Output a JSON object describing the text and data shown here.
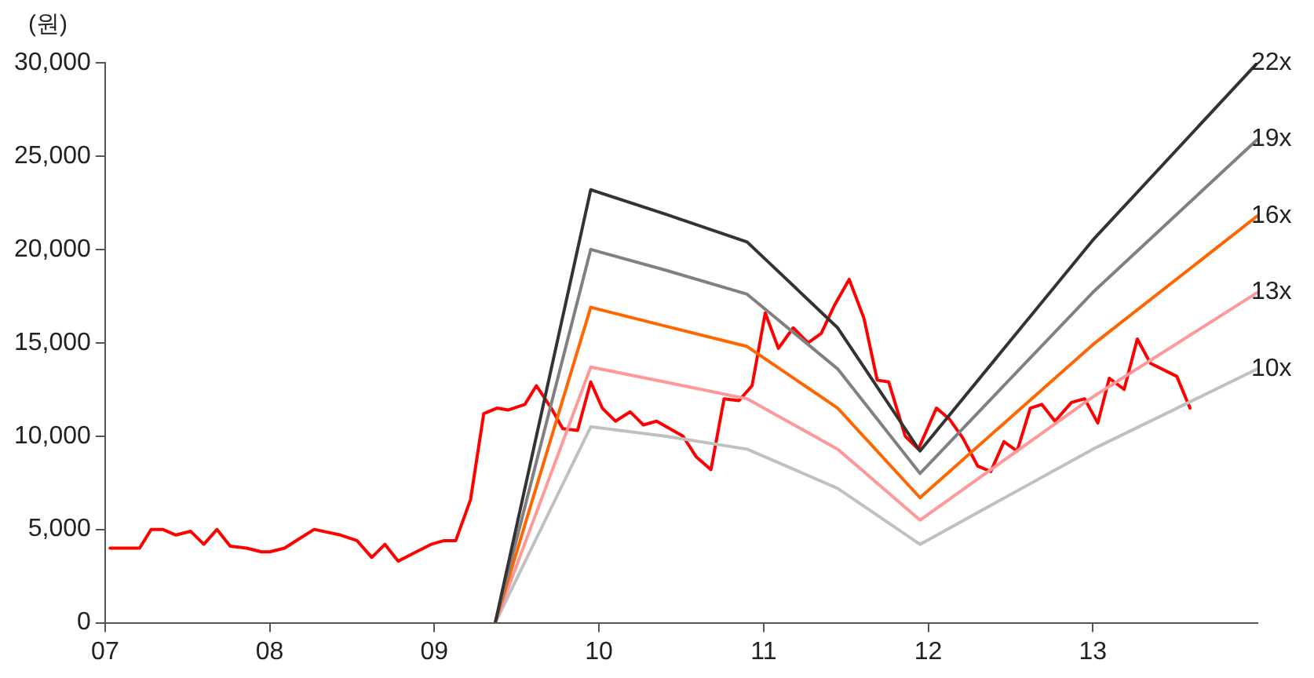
{
  "chart_data": {
    "type": "line",
    "ylabel": "(원)",
    "xlim": [
      2007,
      2014
    ],
    "xticks": [
      {
        "value": 2007,
        "label": "07"
      },
      {
        "value": 2008,
        "label": "08"
      },
      {
        "value": 2009,
        "label": "09"
      },
      {
        "value": 2010,
        "label": "10"
      },
      {
        "value": 2011,
        "label": "11"
      },
      {
        "value": 2012,
        "label": "12"
      },
      {
        "value": 2013,
        "label": "13"
      }
    ],
    "ylim": [
      0,
      30000
    ],
    "yticks": [
      {
        "value": 0,
        "label": "0"
      },
      {
        "value": 5000,
        "label": "5,000"
      },
      {
        "value": 10000,
        "label": "10,000"
      },
      {
        "value": 15000,
        "label": "15,000"
      },
      {
        "value": 20000,
        "label": "20,000"
      },
      {
        "value": 25000,
        "label": "25,000"
      },
      {
        "value": 30000,
        "label": "30,000"
      }
    ],
    "grid": false,
    "legend": false,
    "marker": "none",
    "line_style": "solid",
    "series": [
      {
        "name": "22x",
        "color": "#333333",
        "x": [
          2009.37,
          2009.95,
          2010.4,
          2010.9,
          2011.45,
          2011.95,
          2013.0,
          2014.0
        ],
        "values": [
          0,
          23200,
          21900,
          20400,
          15800,
          9200,
          20500,
          30000
        ]
      },
      {
        "name": "19x",
        "color": "#808080",
        "x": [
          2009.37,
          2009.95,
          2010.4,
          2010.9,
          2011.45,
          2011.95,
          2013.0,
          2014.0
        ],
        "values": [
          0,
          20000,
          18900,
          17600,
          13600,
          8000,
          17700,
          25900
        ]
      },
      {
        "name": "16x",
        "color": "#ff6600",
        "x": [
          2009.37,
          2009.95,
          2010.4,
          2010.9,
          2011.45,
          2011.95,
          2013.0,
          2014.0
        ],
        "values": [
          0,
          16900,
          15900,
          14800,
          11500,
          6700,
          14900,
          21800
        ]
      },
      {
        "name": "13x",
        "color": "#ff9999",
        "x": [
          2009.37,
          2009.95,
          2010.4,
          2010.9,
          2011.45,
          2011.95,
          2013.0,
          2014.0
        ],
        "values": [
          0,
          13700,
          12900,
          12000,
          9300,
          5500,
          12100,
          17700
        ]
      },
      {
        "name": "10x",
        "color": "#c0c0c0",
        "x": [
          2009.37,
          2009.95,
          2010.4,
          2010.9,
          2011.45,
          2011.95,
          2013.0,
          2014.0
        ],
        "values": [
          0,
          10500,
          10000,
          9300,
          7200,
          4200,
          9300,
          13600
        ]
      },
      {
        "color": "#ff0000",
        "x": [
          2007.03,
          2007.21,
          2007.28,
          2007.35,
          2007.43,
          2007.52,
          2007.6,
          2007.68,
          2007.76,
          2007.86,
          2007.95,
          2008.0,
          2008.09,
          2008.18,
          2008.27,
          2008.43,
          2008.53,
          2008.62,
          2008.7,
          2008.78,
          2008.89,
          2008.98,
          2009.06,
          2009.13,
          2009.22,
          2009.3,
          2009.38,
          2009.45,
          2009.55,
          2009.62,
          2009.71,
          2009.78,
          2009.87,
          2009.95,
          2010.02,
          2010.1,
          2010.19,
          2010.27,
          2010.35,
          2010.43,
          2010.51,
          2010.59,
          2010.68,
          2010.76,
          2010.85,
          2010.93,
          2011.01,
          2011.09,
          2011.18,
          2011.27,
          2011.35,
          2011.43,
          2011.52,
          2011.61,
          2011.69,
          2011.76,
          2011.86,
          2011.94,
          2012.05,
          2012.13,
          2012.21,
          2012.3,
          2012.38,
          2012.46,
          2012.54,
          2012.62,
          2012.69,
          2012.77,
          2012.87,
          2012.95,
          2013.03,
          2013.1,
          2013.19,
          2013.27,
          2013.35,
          2013.51,
          2013.59
        ],
        "values": [
          4000,
          4000,
          5000,
          5000,
          4700,
          4900,
          4200,
          5000,
          4100,
          4000,
          3800,
          3800,
          4000,
          4500,
          5000,
          4700,
          4400,
          3500,
          4200,
          3300,
          3800,
          4200,
          4400,
          4400,
          6600,
          11200,
          11500,
          11400,
          11700,
          12700,
          11500,
          10400,
          10300,
          12900,
          11500,
          10800,
          11300,
          10600,
          10800,
          10400,
          10000,
          8900,
          8200,
          12000,
          11900,
          12700,
          16600,
          14700,
          15800,
          15000,
          15500,
          17000,
          18400,
          16300,
          13000,
          12900,
          10000,
          9300,
          11500,
          10900,
          9900,
          8400,
          8100,
          9700,
          9200,
          11500,
          11700,
          10800,
          11800,
          12000,
          10700,
          13100,
          12500,
          15200,
          13900,
          13200,
          11500
        ]
      }
    ]
  }
}
